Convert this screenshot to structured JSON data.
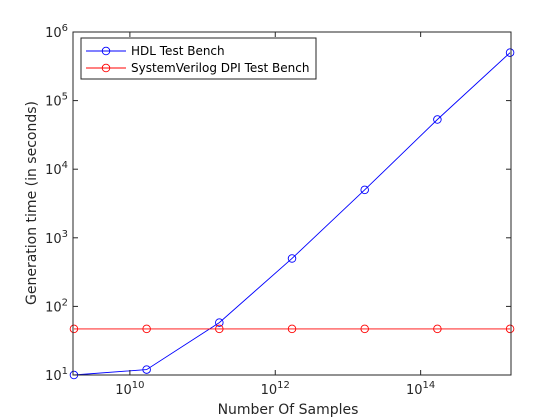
{
  "chart_data": {
    "type": "line",
    "xscale": "log",
    "yscale": "log",
    "xlim": [
      1650000000,
      1750000000000000
    ],
    "ylim": [
      10,
      1000000
    ],
    "xticks": [
      {
        "value": 10000000000,
        "base": "10",
        "exp": "10"
      },
      {
        "value": 1000000000000,
        "base": "10",
        "exp": "12"
      },
      {
        "value": 100000000000000,
        "base": "10",
        "exp": "14"
      }
    ],
    "yticks": [
      {
        "value": 10,
        "base": "10",
        "exp": "1"
      },
      {
        "value": 100,
        "base": "10",
        "exp": "2"
      },
      {
        "value": 1000,
        "base": "10",
        "exp": "3"
      },
      {
        "value": 10000,
        "base": "10",
        "exp": "4"
      },
      {
        "value": 100000,
        "base": "10",
        "exp": "5"
      },
      {
        "value": 1000000,
        "base": "10",
        "exp": "6"
      }
    ],
    "xlabel": "Number Of Samples",
    "ylabel": "Generation time (in seconds)",
    "legend_position": "top-left",
    "grid": false,
    "series": [
      {
        "name": "HDL Test Bench",
        "color": "#0000ff",
        "marker": "circle",
        "x": [
          1700000000,
          17000000000,
          170000000000,
          1700000000000,
          17000000000000,
          170000000000000,
          1700000000000000
        ],
        "y": [
          10,
          12,
          58,
          500,
          5000,
          53000,
          500000
        ]
      },
      {
        "name": "SystemVerilog DPI Test Bench",
        "color": "#ff0000",
        "marker": "circle",
        "x": [
          1700000000,
          17000000000,
          170000000000,
          1700000000000,
          17000000000000,
          170000000000000,
          1700000000000000
        ],
        "y": [
          47,
          47,
          47,
          47,
          47,
          47,
          47
        ]
      }
    ]
  }
}
